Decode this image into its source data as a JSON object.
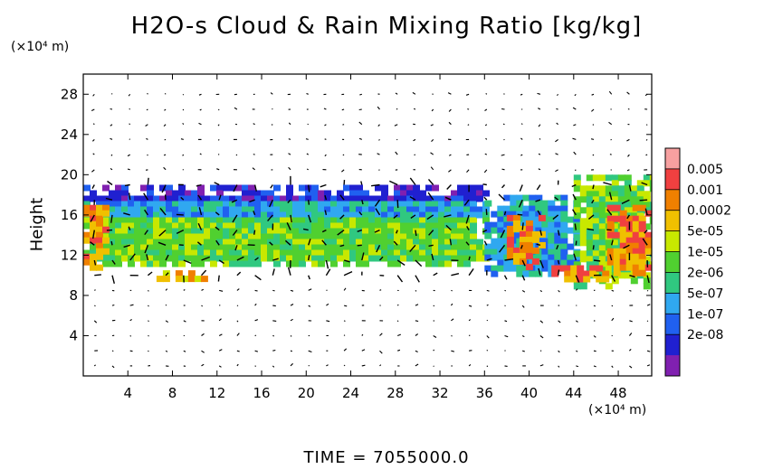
{
  "chart_data": {
    "type": "heatmap",
    "title": "H2O-s Cloud & Rain Mixing Ratio [kg/kg]",
    "ylabel": "Height",
    "x_unit": "(×10⁴ m)",
    "y_unit": "(×10⁴ m)",
    "xlim": [
      0,
      51
    ],
    "ylim": [
      0,
      30
    ],
    "x_ticks": [
      "4",
      "8",
      "12",
      "16",
      "20",
      "24",
      "28",
      "32",
      "36",
      "40",
      "44",
      "48"
    ],
    "y_ticks": [
      "4",
      "8",
      "12",
      "16",
      "20",
      "24",
      "28"
    ],
    "colorbar": {
      "labels": [
        "0.005",
        "0.001",
        "0.0002",
        "5e-05",
        "1e-05",
        "2e-06",
        "5e-07",
        "1e-07",
        "2e-08"
      ],
      "colors": [
        "#f7a0a0",
        "#f04040",
        "#f08000",
        "#f0c000",
        "#c8e800",
        "#50d030",
        "#30c880",
        "#30a8f0",
        "#2060f0",
        "#2020d0",
        "#8020b0"
      ]
    },
    "field_regions": [
      {
        "x": [
          0,
          36
        ],
        "y": [
          11,
          19
        ],
        "level": "1e-05"
      },
      {
        "x": [
          36,
          44
        ],
        "y": [
          10,
          18
        ],
        "level": "5e-07"
      },
      {
        "x": [
          44,
          51
        ],
        "y": [
          9,
          20
        ],
        "level": "1e-05"
      },
      {
        "x": [
          0,
          2
        ],
        "y": [
          11,
          17
        ],
        "level": "0.001"
      },
      {
        "x": [
          38,
          41
        ],
        "y": [
          11,
          16
        ],
        "level": "0.001"
      },
      {
        "x": [
          47,
          51
        ],
        "y": [
          10,
          17
        ],
        "level": "0.001"
      },
      {
        "x": [
          6,
          11
        ],
        "y": [
          9.5,
          10.5
        ],
        "level": "0.0002"
      },
      {
        "x": [
          42,
          47
        ],
        "y": [
          9.5,
          11
        ],
        "level": "0.001"
      }
    ],
    "footer": "TIME = 7055000.0"
  }
}
